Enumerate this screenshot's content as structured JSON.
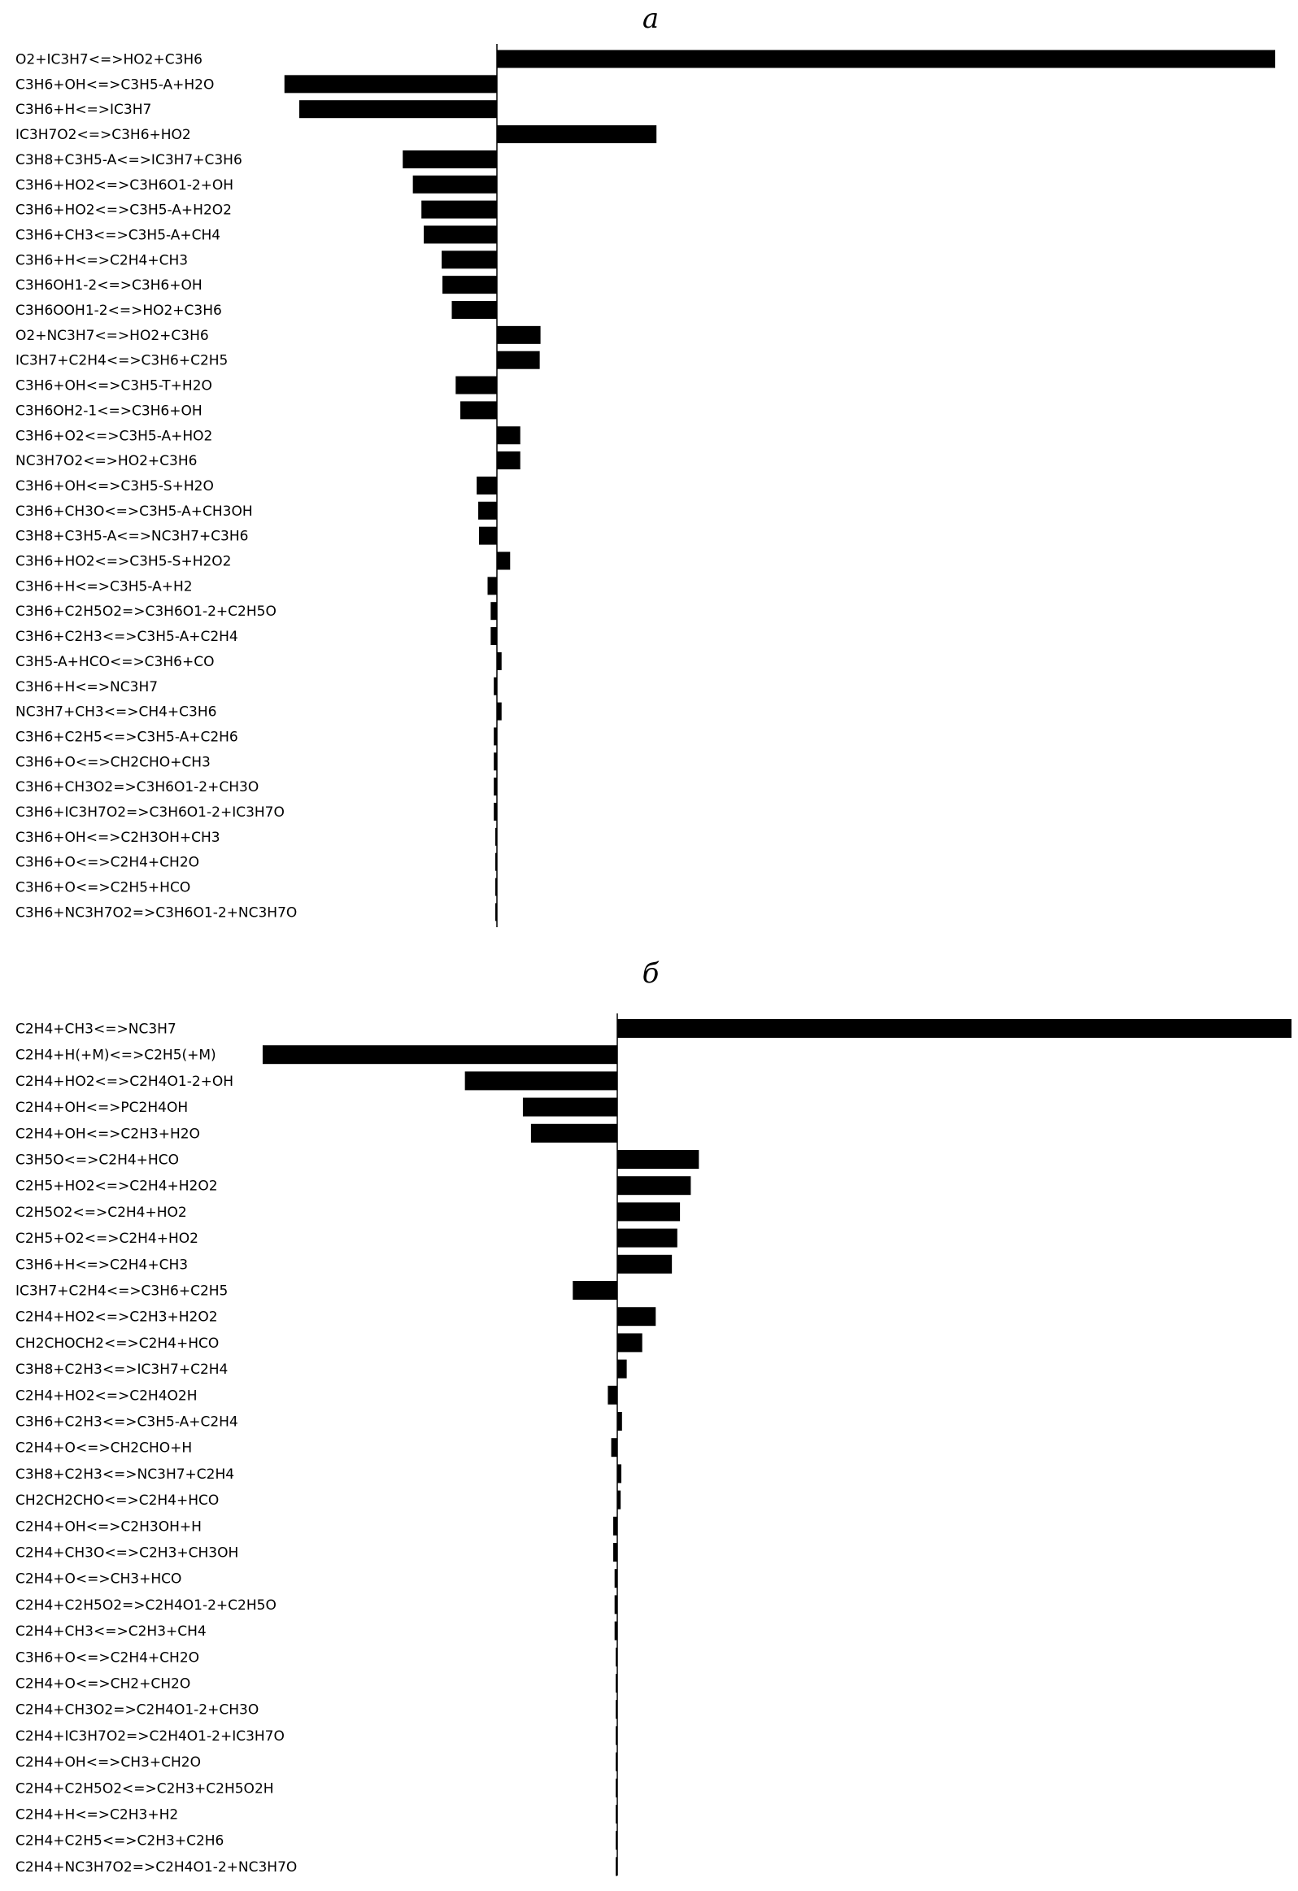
{
  "colors": {
    "bar": "#000000",
    "axis": "#000000",
    "background": "#ffffff"
  },
  "chart_data": [
    {
      "type": "bar",
      "orientation": "horizontal",
      "title": "а",
      "xlabel": "",
      "ylabel": "",
      "grid": false,
      "xlim": [
        -1.0,
        1.0
      ],
      "categories": [
        "O2+IC3H7<=>HO2+C3H6",
        "C3H6+OH<=>C3H5-A+H2O",
        "C3H6+H<=>IC3H7",
        "IC3H7O2<=>C3H6+HO2",
        "C3H8+C3H5-A<=>IC3H7+C3H6",
        "C3H6+HO2<=>C3H6O1-2+OH",
        "C3H6+HO2<=>C3H5-A+H2O2",
        "C3H6+CH3<=>C3H5-A+CH4",
        "C3H6+H<=>C2H4+CH3",
        "C3H6OH1-2<=>C3H6+OH",
        "C3H6OOH1-2<=>HO2+C3H6",
        "O2+NC3H7<=>HO2+C3H6",
        "IC3H7+C2H4<=>C3H6+C2H5",
        "C3H6+OH<=>C3H5-T+H2O",
        "C3H6OH2-1<=>C3H6+OH",
        "C3H6+O2<=>C3H5-A+HO2",
        "NC3H7O2<=>HO2+C3H6",
        "C3H6+OH<=>C3H5-S+H2O",
        "C3H6+CH3O<=>C3H5-A+CH3OH",
        "C3H8+C3H5-A<=>NC3H7+C3H6",
        "C3H6+HO2<=>C3H5-S+H2O2",
        "C3H6+H<=>C3H5-A+H2",
        "C3H6+C2H5O2=>C3H6O1-2+C2H5O",
        "C3H6+C2H3<=>C3H5-A+C2H4",
        "C3H5-A+HCO<=>C3H6+CO",
        "C3H6+H<=>NC3H7",
        "NC3H7+CH3<=>CH4+C3H6",
        "C3H6+C2H5<=>C3H5-A+C2H6",
        "C3H6+O<=>CH2CHO+CH3",
        "C3H6+CH3O2=>C3H6O1-2+CH3O",
        "C3H6+IC3H7O2=>C3H6O1-2+IC3H7O",
        "C3H6+OH<=>C2H3OH+CH3",
        "C3H6+O<=>C2H4+CH2O",
        "C3H6+O<=>C2H5+HCO",
        "C3H6+NC3H7O2=>C3H6O1-2+NC3H7O"
      ],
      "values": [
        1.0,
        -0.273,
        -0.254,
        0.205,
        -0.121,
        -0.108,
        -0.097,
        -0.094,
        -0.071,
        -0.07,
        -0.058,
        0.056,
        0.055,
        -0.053,
        -0.047,
        0.03,
        0.03,
        -0.026,
        -0.024,
        -0.023,
        0.017,
        -0.012,
        -0.008,
        -0.008,
        0.006,
        -0.004,
        0.006,
        -0.004,
        -0.004,
        -0.004,
        -0.004,
        -0.002,
        -0.002,
        -0.002,
        -0.002
      ]
    },
    {
      "type": "bar",
      "orientation": "horizontal",
      "title": "б",
      "xlabel": "",
      "ylabel": "",
      "grid": false,
      "xlim": [
        -1.0,
        1.0
      ],
      "categories": [
        "C2H4+CH3<=>NC3H7",
        "C2H4+H(+M)<=>C2H5(+M)",
        "C2H4+HO2<=>C2H4O1-2+OH",
        "C2H4+OH<=>PC2H4OH",
        "C2H4+OH<=>C2H3+H2O",
        "C3H5O<=>C2H4+HCO",
        "C2H5+HO2<=>C2H4+H2O2",
        "C2H5O2<=>C2H4+HO2",
        "C2H5+O2<=>C2H4+HO2",
        "C3H6+H<=>C2H4+CH3",
        "IC3H7+C2H4<=>C3H6+C2H5",
        "C2H4+HO2<=>C2H3+H2O2",
        "CH2CHOCH2<=>C2H4+HCO",
        "C3H8+C2H3<=>IC3H7+C2H4",
        "C2H4+HO2<=>C2H4O2H",
        "C3H6+C2H3<=>C3H5-A+C2H4",
        "C2H4+O<=>CH2CHO+H",
        "C3H8+C2H3<=>NC3H7+C2H4",
        "CH2CH2CHO<=>C2H4+HCO",
        "C2H4+OH<=>C2H3OH+H",
        "C2H4+CH3O<=>C2H3+CH3OH",
        "C2H4+O<=>CH3+HCO",
        "C2H4+C2H5O2=>C2H4O1-2+C2H5O",
        "C2H4+CH3<=>C2H3+CH4",
        "C3H6+O<=>C2H4+CH2O",
        "C2H4+O<=>CH2+CH2O",
        "C2H4+CH3O2=>C2H4O1-2+CH3O",
        "C2H4+IC3H7O2=>C2H4O1-2+IC3H7O",
        "C2H4+OH<=>CH3+CH2O",
        "C2H4+C2H5O2<=>C2H3+C2H5O2H",
        "C2H4+H<=>C2H3+H2",
        "C2H4+C2H5<=>C2H3+C2H6",
        "C2H4+NC3H7O2=>C2H4O1-2+NC3H7O"
      ],
      "values": [
        1.0,
        -0.526,
        -0.226,
        -0.14,
        -0.128,
        0.121,
        0.109,
        0.093,
        0.089,
        0.081,
        -0.066,
        0.057,
        0.037,
        0.014,
        -0.014,
        0.007,
        -0.009,
        0.006,
        0.005,
        -0.006,
        -0.006,
        -0.004,
        -0.004,
        -0.004,
        -0.002,
        -0.002,
        -0.002,
        -0.002,
        -0.002,
        -0.002,
        -0.002,
        -0.002,
        -0.002
      ]
    }
  ]
}
